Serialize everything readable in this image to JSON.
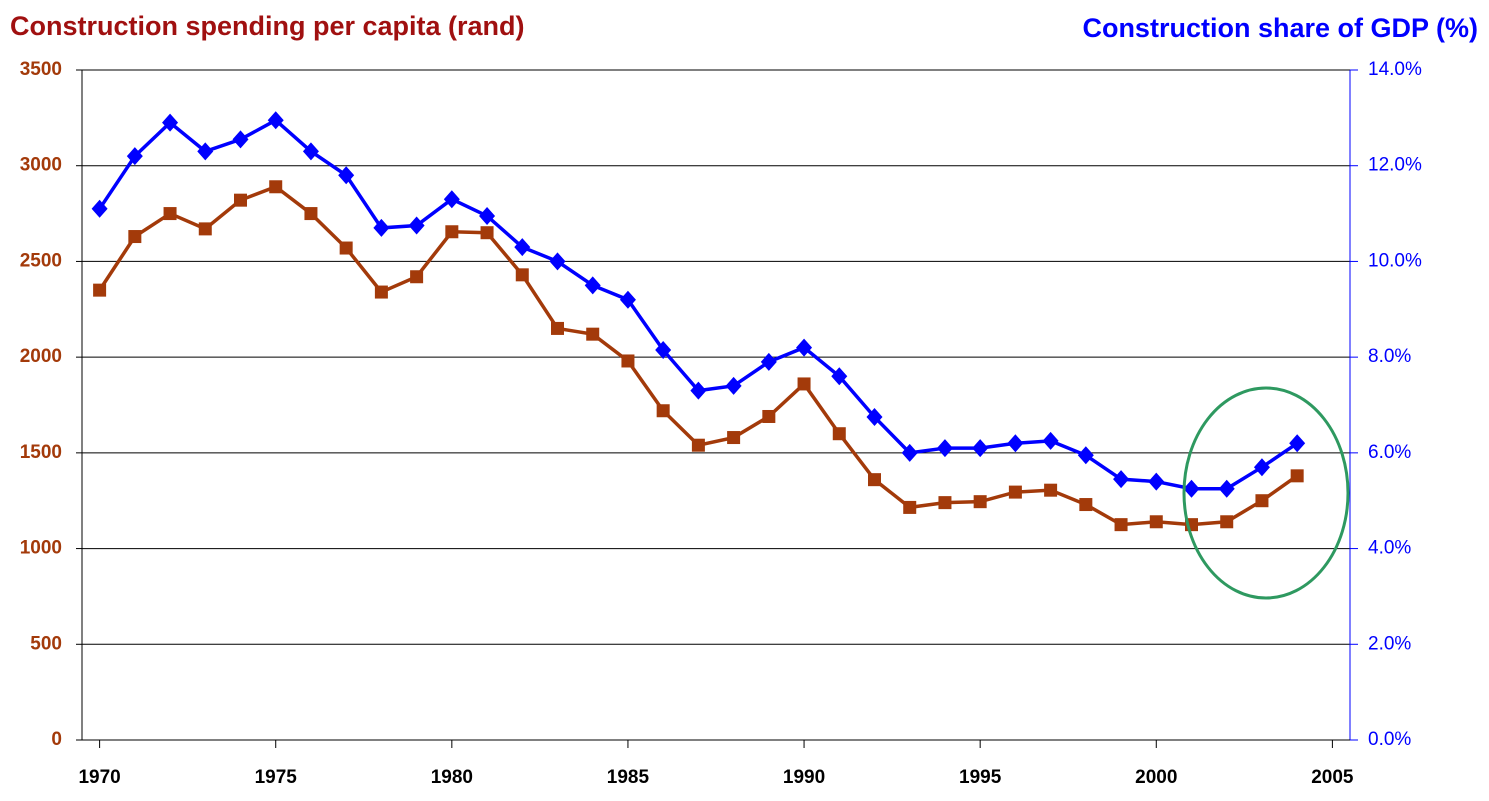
{
  "chart_data": {
    "type": "line",
    "ylabel": "Construction spending per capita (rand)",
    "y2label": "Construction share of GDP (%)",
    "x": [
      1970,
      1971,
      1972,
      1973,
      1974,
      1975,
      1976,
      1977,
      1978,
      1979,
      1980,
      1981,
      1982,
      1983,
      1984,
      1985,
      1986,
      1987,
      1988,
      1989,
      1990,
      1991,
      1992,
      1993,
      1994,
      1995,
      1996,
      1997,
      1998,
      1999,
      2000,
      2001,
      2002,
      2003,
      2004
    ],
    "series": [
      {
        "color": "#a33a0a",
        "marker": "square",
        "axis": "y",
        "values": [
          2350,
          2630,
          2750,
          2670,
          2820,
          2890,
          2750,
          2570,
          2340,
          2420,
          2655,
          2650,
          2430,
          2150,
          2120,
          1980,
          1720,
          1540,
          1580,
          1690,
          1860,
          1600,
          1360,
          1215,
          1240,
          1245,
          1295,
          1305,
          1230,
          1125,
          1140,
          1125,
          1140,
          1250,
          1380
        ]
      },
      {
        "color": "#0000ff",
        "marker": "diamond",
        "axis": "y2",
        "values": [
          11.1,
          12.2,
          12.9,
          12.3,
          12.55,
          12.95,
          12.3,
          11.8,
          10.7,
          10.75,
          11.3,
          10.95,
          10.3,
          10.0,
          9.5,
          9.2,
          8.15,
          7.3,
          7.4,
          7.9,
          8.2,
          7.6,
          6.75,
          6.0,
          6.1,
          6.1,
          6.2,
          6.25,
          5.95,
          5.45,
          5.4,
          5.25,
          5.25,
          5.7,
          6.2
        ]
      }
    ],
    "xlim": [
      1969.5,
      2005.5
    ],
    "xticks": [
      1970,
      1975,
      1980,
      1985,
      1990,
      1995,
      2000,
      2005
    ],
    "ylim": [
      0,
      3500
    ],
    "yticks": [
      0,
      500,
      1000,
      1500,
      2000,
      2500,
      3000,
      3500
    ],
    "y2lim": [
      0,
      14
    ],
    "y2ticks": [
      {
        "value": 0,
        "label": "0.0%"
      },
      {
        "value": 2,
        "label": "2.0%"
      },
      {
        "value": 4,
        "label": "4.0%"
      },
      {
        "value": 6,
        "label": "6.0%"
      },
      {
        "value": 8,
        "label": "8.0%"
      },
      {
        "value": 10,
        "label": "10.0%"
      },
      {
        "value": 12,
        "label": "12.0%"
      },
      {
        "value": 14,
        "label": "14.0%"
      }
    ],
    "grid": true
  }
}
